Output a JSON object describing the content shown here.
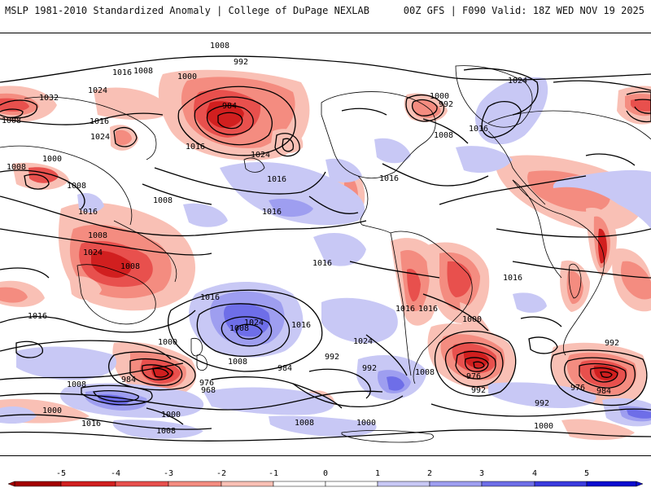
{
  "header": {
    "left": "MSLP 1981-2010 Standardized Anomaly | College of DuPage NEXLAB",
    "right": "00Z GFS | F090 Valid: 18Z WED NOV 19 2025"
  },
  "colors": {
    "neg5": "#a30000",
    "neg4": "#d11f1f",
    "neg3": "#e8504d",
    "neg2": "#f48c80",
    "neg1": "#f9c0b5",
    "zero": "#ffffff",
    "pos1": "#c8c8f5",
    "pos2": "#9e9ef0",
    "pos3": "#6e6ee8",
    "pos4": "#3b3bde",
    "pos5": "#0b0bd0",
    "contour": "#000000",
    "land": "#000000"
  },
  "colorbar": {
    "ticks": [
      "-5",
      "-4",
      "-3",
      "-2",
      "-1",
      "0",
      "1",
      "2",
      "3",
      "4",
      "5"
    ]
  },
  "isobar_labels": [
    {
      "text": "1016",
      "id": "l1"
    },
    {
      "text": "1008",
      "id": "l2"
    },
    {
      "text": "992",
      "id": "l3"
    },
    {
      "text": "1000",
      "id": "l4"
    },
    {
      "text": "984",
      "id": "l5"
    },
    {
      "text": "1016",
      "id": "l6"
    },
    {
      "text": "1008",
      "id": "l7"
    },
    {
      "text": "1024",
      "id": "l8"
    },
    {
      "text": "1032",
      "id": "l9"
    },
    {
      "text": "1016",
      "id": "l10"
    },
    {
      "text": "1008",
      "id": "l11"
    },
    {
      "text": "1024",
      "id": "l12"
    },
    {
      "text": "1016",
      "id": "l13"
    },
    {
      "text": "1008",
      "id": "l14"
    },
    {
      "text": "1000",
      "id": "l15"
    },
    {
      "text": "1008",
      "id": "l16"
    },
    {
      "text": "1016",
      "id": "l17"
    },
    {
      "text": "1024",
      "id": "l18"
    },
    {
      "text": "1016",
      "id": "l19"
    },
    {
      "text": "1008",
      "id": "l20"
    },
    {
      "text": "1016",
      "id": "l21"
    },
    {
      "text": "1008",
      "id": "l22"
    },
    {
      "text": "1024",
      "id": "l23"
    },
    {
      "text": "1008",
      "id": "l24"
    },
    {
      "text": "1016",
      "id": "l25"
    },
    {
      "text": "1024",
      "id": "l26"
    },
    {
      "text": "1016",
      "id": "l27"
    },
    {
      "text": "1008",
      "id": "l28"
    },
    {
      "text": "1016",
      "id": "l29"
    },
    {
      "text": "1016",
      "id": "l30"
    },
    {
      "text": "1016",
      "id": "l31"
    },
    {
      "text": "1008",
      "id": "l32"
    },
    {
      "text": "1016",
      "id": "l33"
    },
    {
      "text": "1024",
      "id": "l34"
    },
    {
      "text": "1016",
      "id": "l35"
    },
    {
      "text": "1000",
      "id": "l36"
    },
    {
      "text": "992",
      "id": "l37"
    },
    {
      "text": "1008",
      "id": "l38"
    },
    {
      "text": "1024",
      "id": "l39"
    },
    {
      "text": "992",
      "id": "l40"
    },
    {
      "text": "984",
      "id": "l41"
    },
    {
      "text": "1000",
      "id": "l42"
    },
    {
      "text": "1008",
      "id": "l43"
    },
    {
      "text": "984",
      "id": "l44"
    },
    {
      "text": "976",
      "id": "l45"
    },
    {
      "text": "968",
      "id": "l46"
    },
    {
      "text": "1008",
      "id": "l47"
    },
    {
      "text": "1000",
      "id": "l48"
    },
    {
      "text": "1016",
      "id": "l49"
    },
    {
      "text": "1008",
      "id": "l50"
    },
    {
      "text": "992",
      "id": "l51"
    },
    {
      "text": "1000",
      "id": "l52"
    },
    {
      "text": "1008",
      "id": "l53"
    },
    {
      "text": "1016",
      "id": "l54"
    },
    {
      "text": "1000",
      "id": "l55"
    },
    {
      "text": "976",
      "id": "l56"
    },
    {
      "text": "992",
      "id": "l57"
    },
    {
      "text": "992",
      "id": "l58"
    },
    {
      "text": "976",
      "id": "l59"
    },
    {
      "text": "984",
      "id": "l60"
    },
    {
      "text": "992",
      "id": "l61"
    },
    {
      "text": "1000",
      "id": "l62"
    },
    {
      "text": "1016",
      "id": "l63"
    },
    {
      "text": "1000",
      "id": "l64"
    }
  ]
}
